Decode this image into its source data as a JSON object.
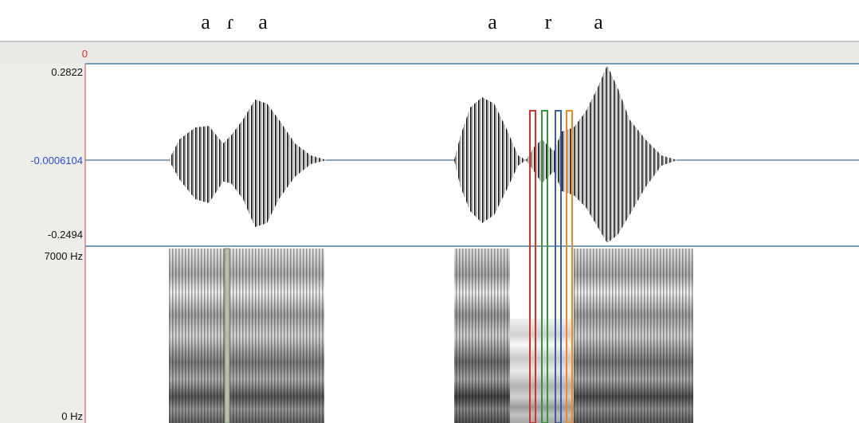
{
  "header": {
    "segments_left": [
      "a",
      "ɾ",
      "a"
    ],
    "segments_right": [
      "a",
      "r",
      "a"
    ]
  },
  "axis": {
    "time_start": "0",
    "amp_max": "0.2822",
    "amp_mid": "-0.0006104",
    "amp_min": "-0.2494",
    "freq_max": "7000 Hz",
    "freq_min": "0 Hz"
  }
}
